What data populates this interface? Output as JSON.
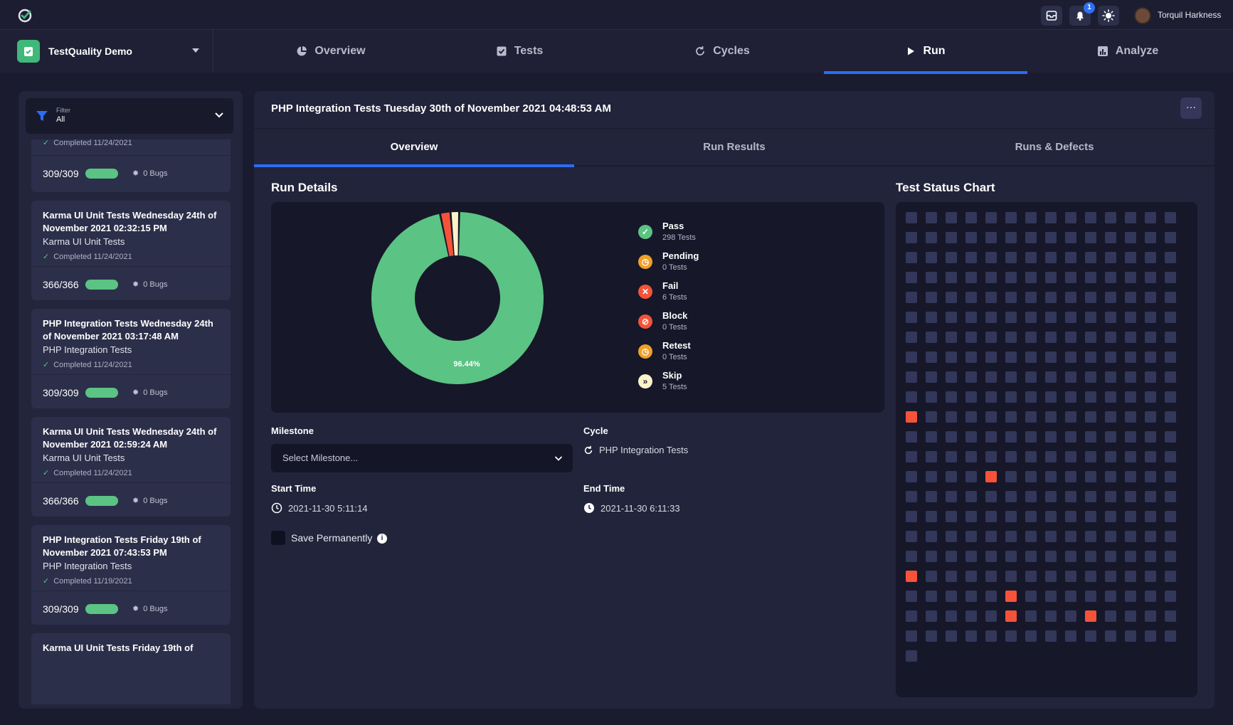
{
  "user": {
    "name": "Torquil Harkness",
    "notifications": "1"
  },
  "project": {
    "name": "TestQuality Demo"
  },
  "nav": {
    "tabs": [
      {
        "label": "Overview",
        "icon": "pie-chart-icon"
      },
      {
        "label": "Tests",
        "icon": "checkbox-icon"
      },
      {
        "label": "Cycles",
        "icon": "cycle-icon"
      },
      {
        "label": "Run",
        "icon": "play-icon"
      },
      {
        "label": "Analyze",
        "icon": "bar-chart-icon"
      }
    ],
    "active": "Run"
  },
  "filter": {
    "label": "Filter",
    "value": "All"
  },
  "runs": [
    {
      "title": "",
      "suite": "",
      "completed": "Completed 11/24/2021",
      "count": "309/309",
      "bugs": "0 Bugs"
    },
    {
      "title": "Karma UI Unit Tests Wednesday 24th of November 2021 02:32:15 PM",
      "suite": "Karma UI Unit Tests",
      "completed": "Completed 11/24/2021",
      "count": "366/366",
      "bugs": "0 Bugs"
    },
    {
      "title": "PHP Integration Tests Wednesday 24th of November 2021 03:17:48 AM",
      "suite": "PHP Integration Tests",
      "completed": "Completed 11/24/2021",
      "count": "309/309",
      "bugs": "0 Bugs"
    },
    {
      "title": "Karma UI Unit Tests Wednesday 24th of November 2021 02:59:24 AM",
      "suite": "Karma UI Unit Tests",
      "completed": "Completed 11/24/2021",
      "count": "366/366",
      "bugs": "0 Bugs"
    },
    {
      "title": "PHP Integration Tests Friday 19th of November 2021 07:43:53 PM",
      "suite": "PHP Integration Tests",
      "completed": "Completed 11/19/2021",
      "count": "309/309",
      "bugs": "0 Bugs"
    },
    {
      "title": "Karma UI Unit Tests Friday 19th of",
      "suite": "",
      "completed": "",
      "count": "",
      "bugs": ""
    }
  ],
  "main": {
    "title": "PHP Integration Tests Tuesday 30th of November 2021 04:48:53 AM",
    "more_label": "···",
    "subtabs": [
      "Overview",
      "Run Results",
      "Runs & Defects"
    ],
    "active_subtab": "Overview",
    "run_details_title": "Run Details",
    "status_chart_title": "Test Status Chart",
    "donut_label": "96.44%",
    "legend": [
      {
        "name": "Pass",
        "count": "298 Tests",
        "color": "#5bc383",
        "glyph": "✓"
      },
      {
        "name": "Pending",
        "count": "0 Tests",
        "color": "#f0a028",
        "glyph": "◷"
      },
      {
        "name": "Fail",
        "count": "6 Tests",
        "color": "#f4533a",
        "glyph": "✕"
      },
      {
        "name": "Block",
        "count": "0 Tests",
        "color": "#f4533a",
        "glyph": "⊘"
      },
      {
        "name": "Retest",
        "count": "0 Tests",
        "color": "#f0a028",
        "glyph": "◷"
      },
      {
        "name": "Skip",
        "count": "5 Tests",
        "color": "#fbf3c8",
        "glyph": "»"
      }
    ],
    "milestone_label": "Milestone",
    "milestone_placeholder": "Select Milestone...",
    "cycle_label": "Cycle",
    "cycle_value": "PHP Integration Tests",
    "start_label": "Start Time",
    "start_value": "2021-11-30 5:11:14",
    "end_label": "End Time",
    "end_value": "2021-11-30 6:11:33",
    "save_label": "Save Permanently",
    "info_glyph": "i"
  },
  "chart_data": {
    "type": "pie",
    "categories": [
      "Pass",
      "Pending",
      "Fail",
      "Block",
      "Retest",
      "Skip"
    ],
    "values": [
      298,
      0,
      6,
      0,
      0,
      5
    ],
    "colors": [
      "#5bc383",
      "#f0a028",
      "#f4533a",
      "#f4533a",
      "#f0a028",
      "#fbf3c8"
    ],
    "label": "96.44%"
  },
  "status_grid": {
    "columns": 14,
    "total": 309,
    "fail_cells": [
      140,
      186,
      252,
      271,
      285,
      289
    ]
  }
}
